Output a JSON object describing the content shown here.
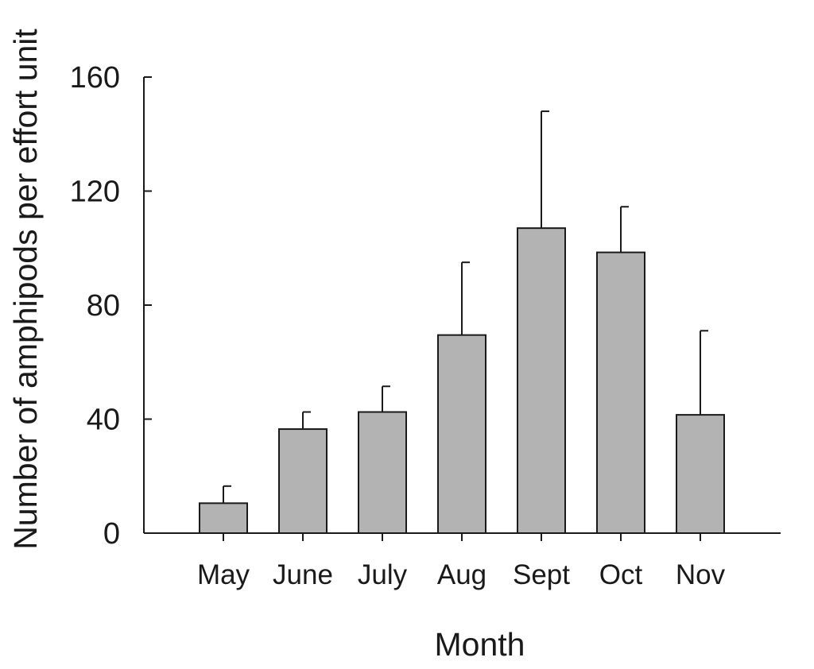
{
  "chart_data": {
    "type": "bar",
    "categories": [
      "May",
      "June",
      "July",
      "Aug",
      "Sept",
      "Oct",
      "Nov"
    ],
    "values": [
      10.5,
      36.5,
      42.5,
      69.5,
      107,
      98.5,
      41.5
    ],
    "error_upper": [
      16.5,
      42.5,
      51.5,
      95,
      148,
      114.5,
      71
    ],
    "xlabel": "Month",
    "ylabel": "Number of amphipods per effort unit",
    "ylim": [
      0,
      160
    ],
    "yticks": [
      0,
      40,
      80,
      120,
      160
    ],
    "ytick_labels": [
      "0",
      "40",
      "80",
      "120",
      "160"
    ],
    "bar_color": "#b3b3b3",
    "grid": false,
    "legend": "none"
  }
}
